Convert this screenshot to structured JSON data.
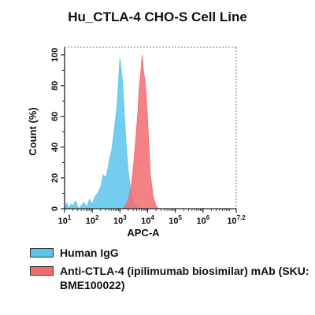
{
  "chart_data": {
    "type": "area",
    "title": "Hu_CTLA-4 CHO-S Cell Line",
    "xlabel": "APC-A",
    "ylabel": "Count  (%)",
    "xscale": "log",
    "xlim": [
      10,
      15848932
    ],
    "ylim": [
      0,
      105
    ],
    "x_ticks": [
      {
        "value": 10,
        "base": "10",
        "exp": "1"
      },
      {
        "value": 100,
        "base": "10",
        "exp": "2"
      },
      {
        "value": 1000,
        "base": "10",
        "exp": "3"
      },
      {
        "value": 10000,
        "base": "10",
        "exp": "4"
      },
      {
        "value": 100000,
        "base": "10",
        "exp": "5"
      },
      {
        "value": 1000000,
        "base": "10",
        "exp": "6"
      },
      {
        "value": 15848932,
        "base": "10",
        "exp": "7.2"
      }
    ],
    "y_ticks": [
      "0",
      "20",
      "40",
      "60",
      "80",
      "100"
    ],
    "grid": false,
    "legend_position": "below",
    "series": [
      {
        "name": "Human IgG",
        "color": "#5bc4ec",
        "x": [
          10,
          12,
          14,
          17,
          20,
          25,
          32,
          40,
          50,
          63,
          79,
          100,
          126,
          158,
          200,
          251,
          316,
          398,
          501,
          631,
          794,
          1000,
          1259,
          1585,
          1995,
          2512,
          3162,
          3981,
          5012,
          6310
        ],
        "y": [
          0,
          4,
          0,
          3,
          2,
          5,
          0,
          2,
          4,
          1,
          6,
          3,
          8,
          10,
          14,
          22,
          20,
          30,
          38,
          52,
          68,
          98,
          82,
          48,
          24,
          10,
          4,
          1,
          0.5,
          0
        ]
      },
      {
        "name": "Anti-CTLA-4 (ipilimumab biosimilar) mAb (SKU: BME100022)",
        "color": "#f26b6e",
        "x": [
          1259,
          1585,
          1995,
          2512,
          3162,
          3981,
          4467,
          5012,
          5623,
          6310,
          7079,
          7943,
          8913,
          10000,
          11220,
          12589,
          15849,
          19953,
          25119
        ],
        "y": [
          0,
          2,
          6,
          14,
          30,
          52,
          64,
          80,
          88,
          100,
          90,
          84,
          74,
          58,
          40,
          22,
          8,
          2,
          0
        ]
      }
    ]
  }
}
